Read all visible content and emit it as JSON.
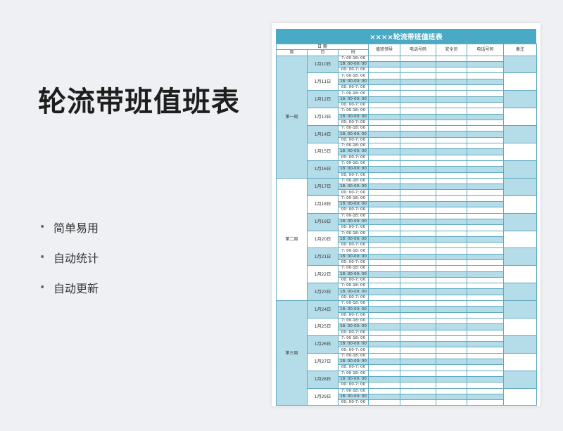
{
  "promo": {
    "title": "轮流带班值班表",
    "features": [
      "简单易用",
      "自动统计",
      "自动更新"
    ]
  },
  "sheet": {
    "title": "××××轮流带班值班表",
    "header": {
      "date_group": "日 期",
      "week": "周",
      "day": "日",
      "time": "时",
      "columns": [
        "值班领导",
        "电话号码",
        "安全员",
        "电话号码",
        "备注"
      ]
    },
    "time_slots": [
      "7: 00-18: 00",
      "18: 00-00: 00",
      "00: 00-7: 00"
    ],
    "weeks": [
      {
        "label": "第一周",
        "days": [
          "1月10日",
          "1月11日",
          "1月12日",
          "1月13日",
          "1月14日",
          "1月15日",
          "1月16日"
        ]
      },
      {
        "label": "第二周",
        "days": [
          "1月17日",
          "1月18日",
          "1月19日",
          "1月20日",
          "1月21日",
          "1月22日",
          "1月23日"
        ]
      },
      {
        "label": "第三周",
        "days": [
          "1月24日",
          "1月25日",
          "1月26日",
          "1月27日",
          "1月28日",
          "1月29日"
        ]
      }
    ]
  },
  "colors": {
    "title_bar": "#4aaac5",
    "row_blue": "#b5dde9",
    "border": "#5fa9bf"
  }
}
